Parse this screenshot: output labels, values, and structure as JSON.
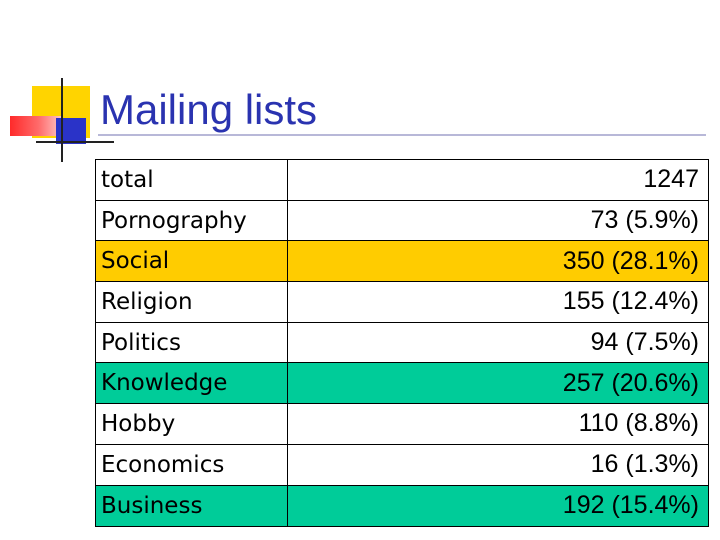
{
  "slide": {
    "title": "Mailing lists"
  },
  "colors": {
    "title": "#2a33b0",
    "highlight_yellow": "#ffcc00",
    "highlight_green": "#00cc99"
  },
  "table": {
    "rows": [
      {
        "label": "total",
        "value": "1247",
        "highlight": "none"
      },
      {
        "label": "Pornography",
        "value": "73 (5.9%)",
        "highlight": "none"
      },
      {
        "label": "Social",
        "value": "350 (28.1%)",
        "highlight": "yellow"
      },
      {
        "label": "Religion",
        "value": "155 (12.4%)",
        "highlight": "none"
      },
      {
        "label": "Politics",
        "value": "94 (7.5%)",
        "highlight": "none"
      },
      {
        "label": "Knowledge",
        "value": "257 (20.6%)",
        "highlight": "green"
      },
      {
        "label": "Hobby",
        "value": "110 (8.8%)",
        "highlight": "none"
      },
      {
        "label": "Economics",
        "value": "16 (1.3%)",
        "highlight": "none"
      },
      {
        "label": "Business",
        "value": "192 (15.4%)",
        "highlight": "green"
      }
    ]
  }
}
